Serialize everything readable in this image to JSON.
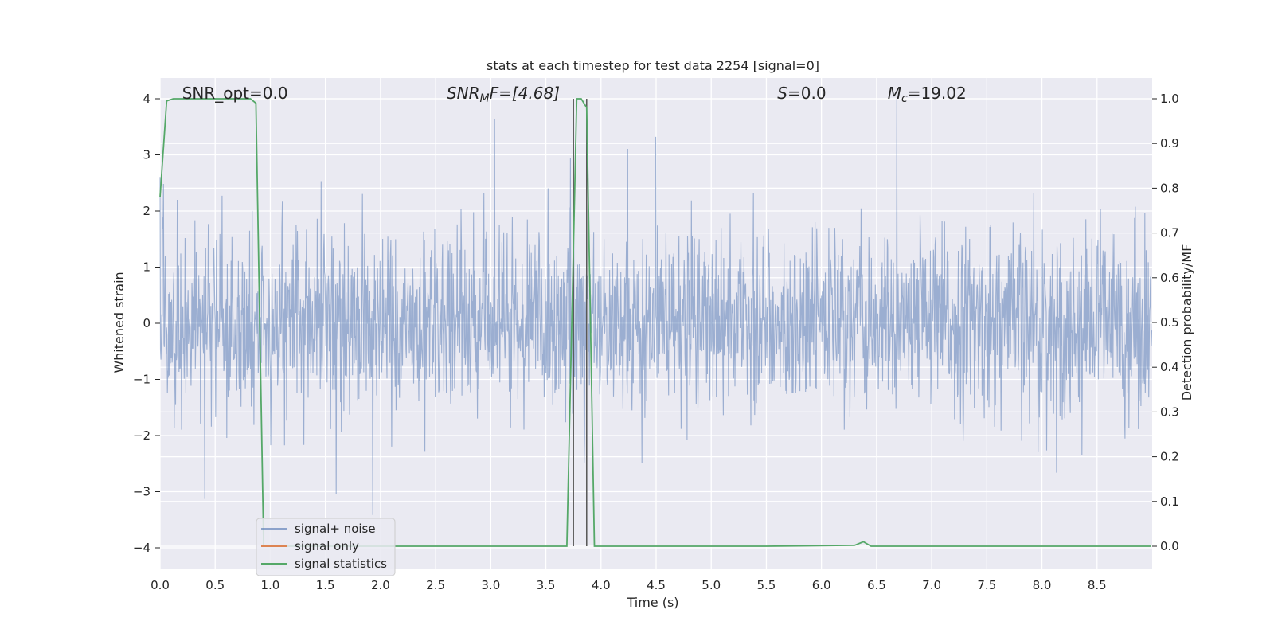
{
  "chart_data": {
    "type": "line",
    "title": "stats at each timestep for test data 2254 [signal=0]",
    "xlabel": "Time (s)",
    "ylabel": "Whitened strain",
    "y2label": "Detection probability/MF",
    "xlim": [
      0.0,
      9.0
    ],
    "ylim": [
      -4.4,
      4.4
    ],
    "y2lim": [
      -0.05,
      1.05
    ],
    "xticks": [
      0.0,
      0.5,
      1.0,
      1.5,
      2.0,
      2.5,
      3.0,
      3.5,
      4.0,
      4.5,
      5.0,
      5.5,
      6.0,
      6.5,
      7.0,
      7.5,
      8.0,
      8.5
    ],
    "xtick_labels": [
      "0.0",
      "0.5",
      "1.0",
      "1.5",
      "2.0",
      "2.5",
      "3.0",
      "3.5",
      "4.0",
      "4.5",
      "5.0",
      "5.5",
      "6.0",
      "6.5",
      "7.0",
      "7.5",
      "8.0",
      "8.5"
    ],
    "yticks": [
      4,
      3,
      2,
      1,
      0,
      -1,
      -2,
      -3,
      -4
    ],
    "ytick_labels": [
      "4",
      "3",
      "2",
      "1",
      "0",
      "−1",
      "−2",
      "−3",
      "−4"
    ],
    "y2ticks": [
      1.0,
      0.9,
      0.8,
      0.7,
      0.6,
      0.5,
      0.4,
      0.3,
      0.2,
      0.1,
      0.0
    ],
    "y2tick_labels": [
      "1.0",
      "0.9",
      "0.8",
      "0.7",
      "0.6",
      "0.5",
      "0.4",
      "0.3",
      "0.2",
      "0.1",
      "0.0"
    ],
    "grid": true,
    "legend_placement": "lower-left",
    "annotations": [
      {
        "prefix": "SNR_opt",
        "sub": "",
        "suffix": "=0.0",
        "italic": false,
        "x": 0.2
      },
      {
        "prefix": "SNR",
        "sub": "M",
        "suffix": "F=[4.68]",
        "italic": true,
        "x": 2.6
      },
      {
        "prefix": "S",
        "sub": "",
        "suffix": "=0.0",
        "italic": true,
        "x": 5.6
      },
      {
        "prefix": "M",
        "sub": "c",
        "suffix": "=19.02",
        "italic": true,
        "x": 6.6
      }
    ],
    "vlines": [
      3.75,
      3.87
    ],
    "noise_std": 0.8,
    "series": [
      {
        "name": "signal+ noise",
        "color": "#4c72b0",
        "axis": "left",
        "sample_rate": 256,
        "values": []
      },
      {
        "name": "signal only",
        "color": "#dd8452",
        "axis": "left",
        "x": [],
        "values": []
      },
      {
        "name": "signal statistics",
        "color": "#55a868",
        "axis": "right",
        "x": [
          0.0,
          0.06,
          0.12,
          0.3,
          0.5,
          0.7,
          0.82,
          0.87,
          0.94,
          1.0,
          2.0,
          3.0,
          3.69,
          3.78,
          3.82,
          3.87,
          3.94,
          4.5,
          5.5,
          6.3,
          6.38,
          6.45,
          7.0,
          8.0,
          8.99
        ],
        "values": [
          0.78,
          0.995,
          1.0,
          1.0,
          1.0,
          1.0,
          1.0,
          0.99,
          0.0,
          0.0,
          0.0,
          0.0,
          0.0,
          1.0,
          1.0,
          0.98,
          0.0,
          0.0,
          0.0,
          0.002,
          0.01,
          0.0,
          0.0,
          0.0,
          0.0
        ]
      }
    ]
  }
}
